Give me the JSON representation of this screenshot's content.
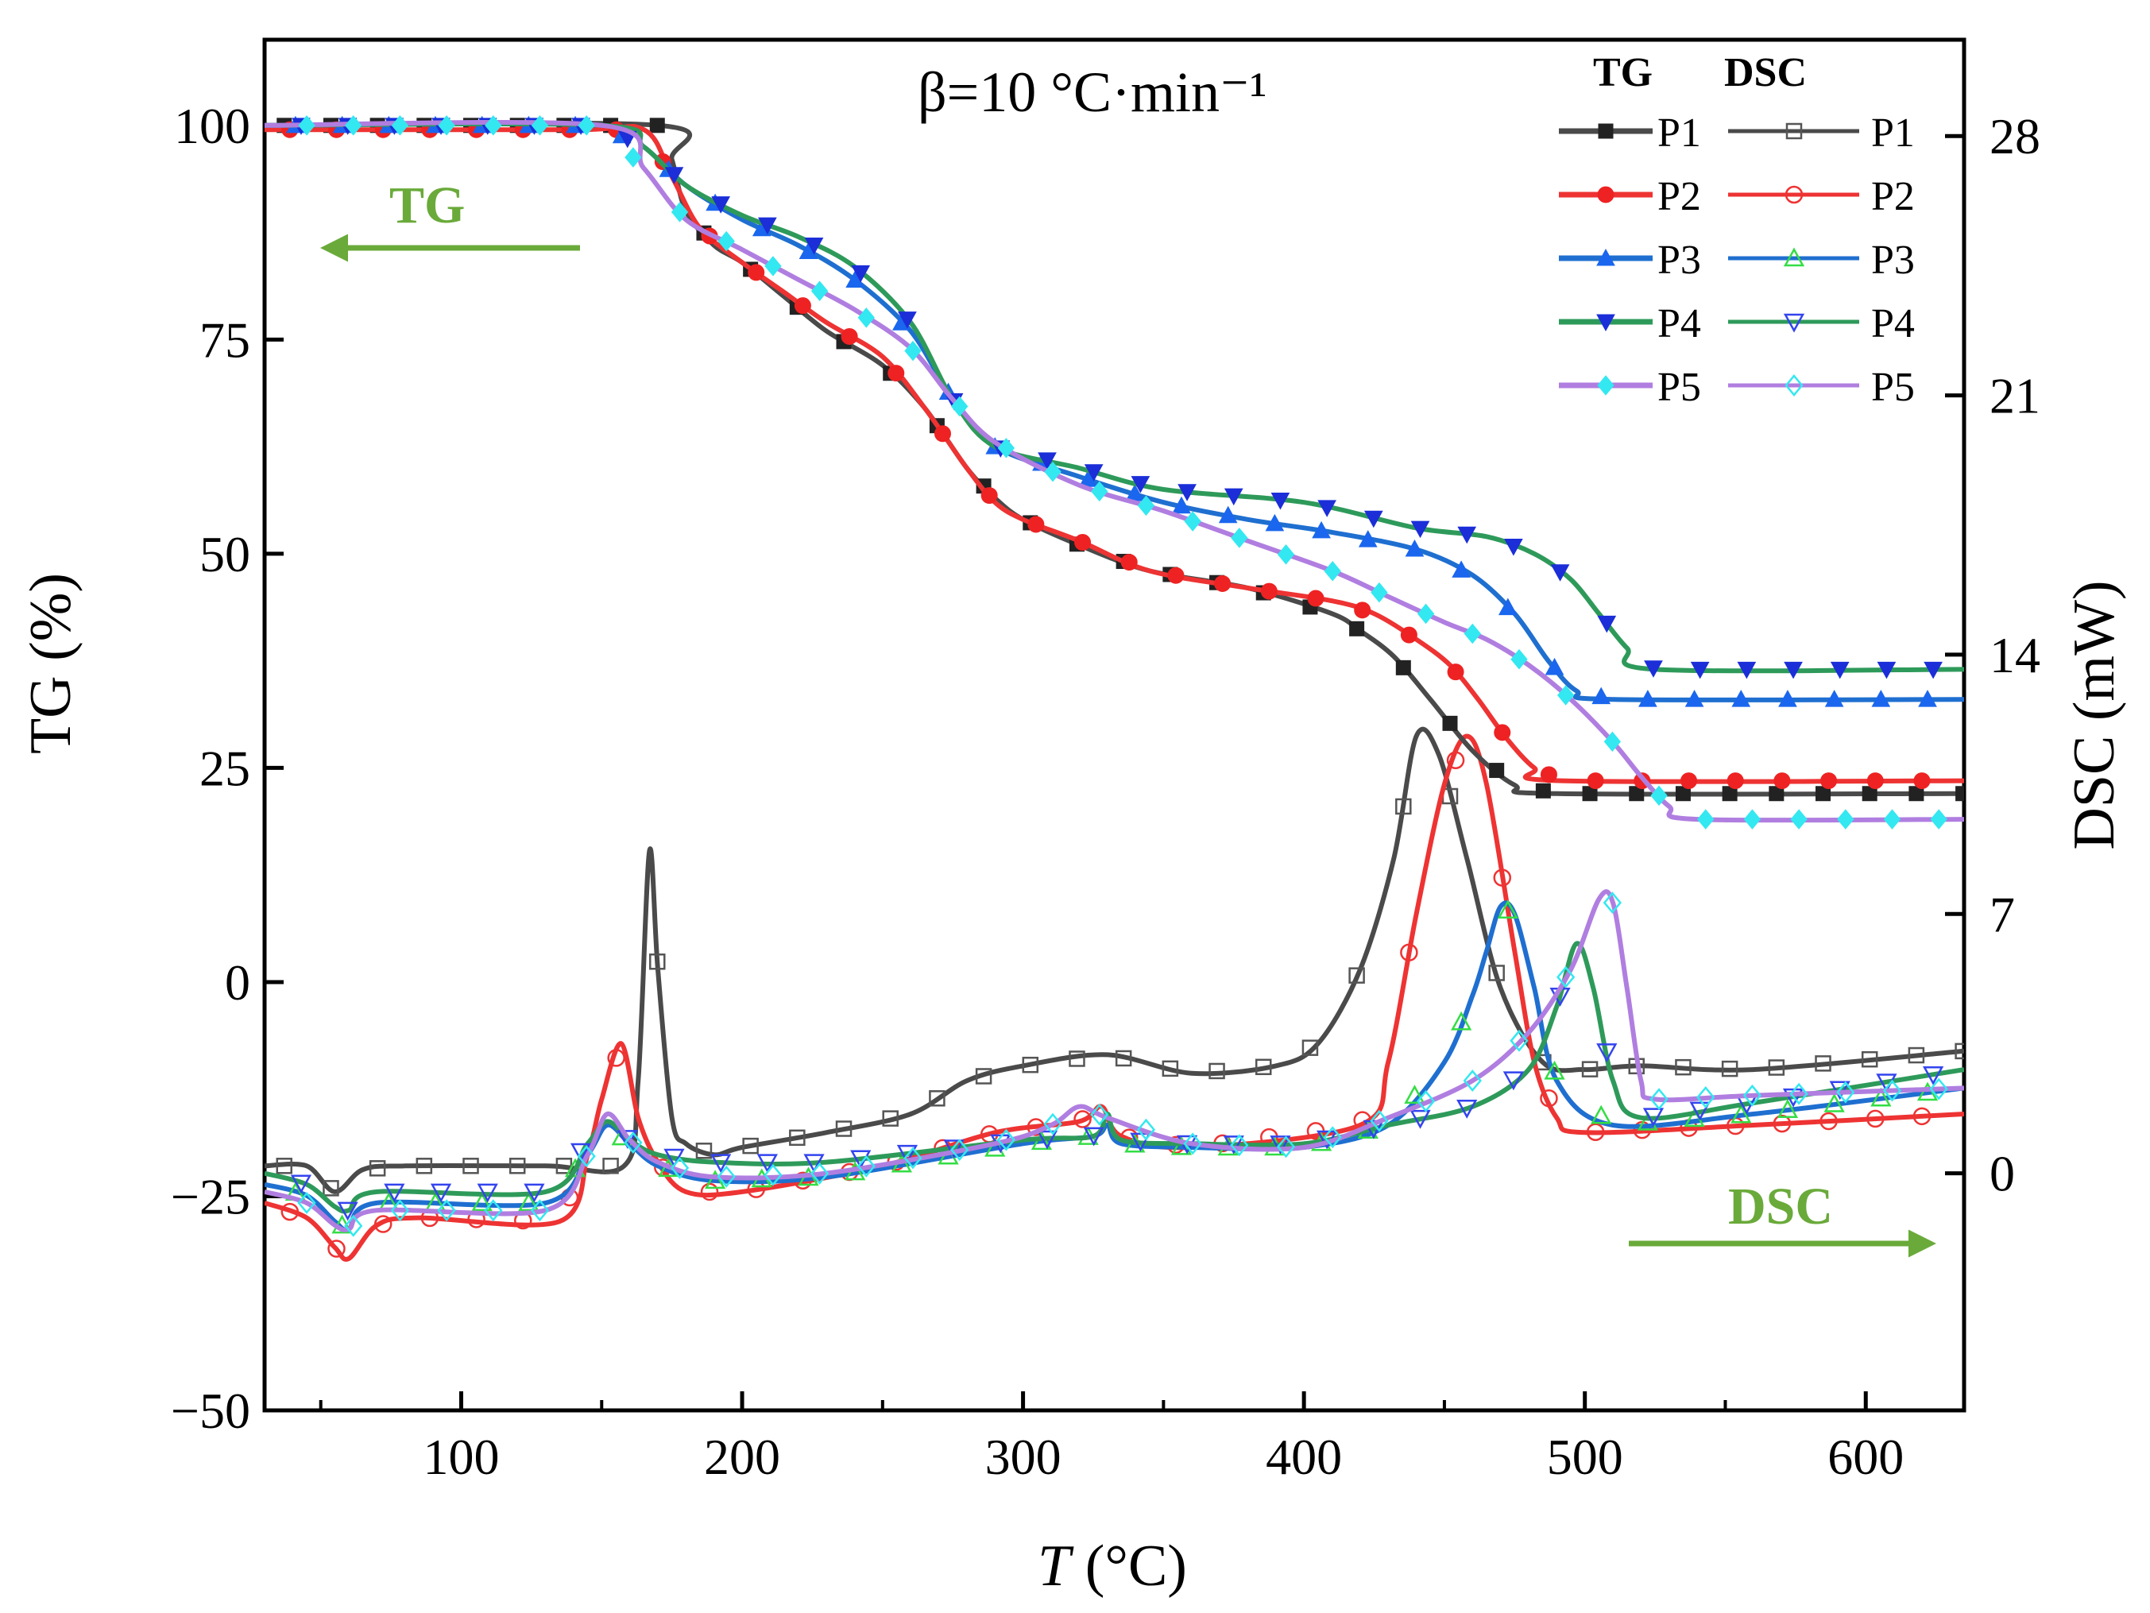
{
  "chart_data": {
    "type": "line",
    "title": "β=10 °C·min⁻¹",
    "xlabel": "T (°C)",
    "xlabel_italic": "T",
    "xlabel_unit": " (°C)",
    "ylabel_left": "TG (%)",
    "ylabel_right": "DSC (mW)",
    "xlim": [
      30,
      635
    ],
    "ylim_left": [
      -50,
      110
    ],
    "ylim_right": [
      -6.4,
      30.6
    ],
    "xticks": [
      100,
      200,
      300,
      400,
      500,
      600
    ],
    "yticks_left": [
      100,
      75,
      50,
      25,
      0,
      -25,
      -50
    ],
    "ytick_labels_left": [
      "100",
      "75",
      "50",
      "25",
      "0",
      "−25",
      "−50"
    ],
    "yticks_right": [
      28,
      21,
      14,
      7,
      0
    ],
    "grid": false,
    "legend_position": "top-right",
    "legend_headers": [
      "TG",
      "DSC"
    ],
    "annotations": {
      "tg_arrow_label": "TG",
      "dsc_arrow_label": "DSC",
      "arrow_color": "#6aaa3a"
    },
    "series_names": [
      "P1",
      "P2",
      "P3",
      "P4",
      "P5"
    ],
    "colors": {
      "P1": "#4a4a4a",
      "P2": "#ee3333",
      "P3": "#1f6fd0",
      "P4": "#2e9a5a",
      "P5": "#b07ee0"
    },
    "marker_colors_tg": {
      "P1": "#222222",
      "P2": "#ee2222",
      "P3": "#1a66ee",
      "P4": "#1b2ed8",
      "P5": "#33e8f0"
    },
    "marker_colors_dsc": {
      "P1": "#555555",
      "P2": "#ee3333",
      "P3": "#33dd44",
      "P4": "#3344ee",
      "P5": "#33e8f0"
    },
    "tg_series": [
      {
        "name": "P1",
        "x": [
          30,
          170,
          175,
          180,
          190,
          200,
          215,
          230,
          250,
          265,
          280,
          290,
          300,
          320,
          345,
          380,
          410,
          420,
          432,
          445,
          460,
          475,
          490,
          635
        ],
        "y": [
          100,
          100,
          96,
          90,
          86,
          84,
          80,
          76,
          72,
          67,
          60,
          56.5,
          54,
          51,
          48,
          46,
          43,
          41,
          38,
          33,
          27,
          23,
          22,
          22
        ]
      },
      {
        "name": "P2",
        "x": [
          30,
          140,
          165,
          175,
          185,
          200,
          215,
          230,
          250,
          265,
          280,
          290,
          300,
          320,
          345,
          380,
          410,
          425,
          440,
          452,
          462,
          472,
          482,
          492,
          635
        ],
        "y": [
          99.5,
          99.5,
          99.5,
          94,
          88,
          84,
          80.5,
          77,
          73,
          67,
          60,
          56,
          54,
          51.5,
          48,
          46,
          44.5,
          43,
          40,
          37,
          33,
          28.5,
          25,
          23.5,
          23.5
        ]
      },
      {
        "name": "P3",
        "x": [
          30,
          150,
          165,
          180,
          200,
          220,
          240,
          260,
          275,
          290,
          320,
          350,
          380,
          410,
          440,
          460,
          475,
          487,
          497,
          510,
          635
        ],
        "y": [
          100,
          100,
          97.5,
          93,
          89,
          86,
          82,
          76,
          68,
          62.5,
          59,
          56,
          54,
          52.5,
          50.5,
          47.5,
          43,
          37.5,
          34,
          33,
          33
        ]
      },
      {
        "name": "P4",
        "x": [
          30,
          150,
          165,
          180,
          200,
          220,
          240,
          260,
          275,
          290,
          320,
          350,
          400,
          440,
          465,
          482,
          495,
          505,
          515,
          525,
          635
        ],
        "y": [
          100,
          100,
          97.5,
          93,
          89.5,
          87,
          83.5,
          77,
          68,
          62.5,
          60,
          57.5,
          56,
          53,
          52,
          50,
          47,
          43,
          39,
          36.5,
          36.5
        ]
      },
      {
        "name": "P5",
        "x": [
          30,
          150,
          165,
          180,
          200,
          220,
          240,
          260,
          275,
          290,
          320,
          350,
          380,
          410,
          430,
          450,
          465,
          480,
          495,
          510,
          520,
          530,
          540,
          635
        ],
        "y": [
          100,
          100,
          95,
          89,
          85.5,
          82,
          78.5,
          74,
          68,
          63,
          58,
          55,
          51.5,
          48,
          45,
          42,
          40,
          37,
          33,
          28,
          24,
          20.5,
          19,
          19
        ]
      }
    ],
    "dsc_series": [
      {
        "name": "P1",
        "x": [
          30,
          45,
          55,
          65,
          80,
          130,
          158,
          163,
          167,
          170,
          175,
          180,
          190,
          200,
          230,
          260,
          280,
          300,
          330,
          360,
          390,
          405,
          420,
          432,
          440,
          448,
          458,
          470,
          485,
          500,
          520,
          560,
          635
        ],
        "y": [
          0.2,
          0.2,
          -0.5,
          0.1,
          0.2,
          0.2,
          0.2,
          2.5,
          8.7,
          5.5,
          1.5,
          0.8,
          0.5,
          0.7,
          1.1,
          1.6,
          2.5,
          2.9,
          3.2,
          2.7,
          2.9,
          3.5,
          5.5,
          8.5,
          11.8,
          11.3,
          8.5,
          5,
          3,
          2.8,
          2.9,
          2.8,
          3.3
        ]
      },
      {
        "name": "P2",
        "x": [
          30,
          45,
          55,
          60,
          70,
          85,
          135,
          145,
          150,
          157,
          163,
          170,
          180,
          200,
          250,
          290,
          320,
          328,
          335,
          360,
          420,
          430,
          440,
          450,
          458,
          465,
          475,
          482,
          490,
          500,
          560,
          635
        ],
        "y": [
          -0.8,
          -1.2,
          -2.0,
          -2.3,
          -1.4,
          -1.2,
          -1.3,
          0.5,
          2.0,
          3.5,
          1.5,
          0.3,
          -0.5,
          -0.5,
          0.2,
          1.1,
          1.4,
          1.8,
          1.0,
          0.7,
          1.3,
          3,
          7,
          10.5,
          11.8,
          10.5,
          6,
          3,
          1.5,
          1.1,
          1.3,
          1.6
        ]
      },
      {
        "name": "P3",
        "x": [
          30,
          45,
          55,
          60,
          70,
          130,
          145,
          152,
          160,
          170,
          190,
          230,
          300,
          325,
          330,
          335,
          360,
          400,
          430,
          450,
          460,
          465,
          470,
          475,
          482,
          490,
          510,
          560,
          635
        ],
        "y": [
          -0.3,
          -0.6,
          -1.3,
          -1.5,
          -0.8,
          -0.8,
          0.5,
          1.3,
          0.8,
          0.2,
          -0.2,
          -0.1,
          0.8,
          1.0,
          1.3,
          0.8,
          0.7,
          0.7,
          1.3,
          3.0,
          4.8,
          6.0,
          7.2,
          7.0,
          5.0,
          2.5,
          1.3,
          1.6,
          2.3
        ]
      },
      {
        "name": "P4",
        "x": [
          30,
          45,
          55,
          60,
          70,
          130,
          145,
          152,
          160,
          170,
          190,
          230,
          300,
          325,
          330,
          335,
          360,
          400,
          430,
          460,
          480,
          490,
          497,
          503,
          510,
          520,
          560,
          635
        ],
        "y": [
          0.0,
          -0.3,
          -0.9,
          -1.0,
          -0.5,
          -0.5,
          0.8,
          1.4,
          0.9,
          0.5,
          0.3,
          0.3,
          0.9,
          1.0,
          1.6,
          0.9,
          0.8,
          0.8,
          1.3,
          1.8,
          2.8,
          4.5,
          6.2,
          5.0,
          2.5,
          1.5,
          1.9,
          2.8
        ]
      },
      {
        "name": "P5",
        "x": [
          30,
          45,
          55,
          60,
          70,
          130,
          145,
          152,
          160,
          170,
          190,
          230,
          290,
          310,
          320,
          330,
          360,
          400,
          430,
          460,
          480,
          495,
          505,
          510,
          515,
          520,
          525,
          560,
          635
        ],
        "y": [
          -0.5,
          -0.8,
          -1.4,
          -1.5,
          -1.0,
          -1.0,
          0.5,
          1.6,
          0.9,
          0.3,
          -0.1,
          0.0,
          0.8,
          1.3,
          1.8,
          1.5,
          0.8,
          0.7,
          1.5,
          2.5,
          3.8,
          5.5,
          7.4,
          7.3,
          5,
          2.5,
          2.0,
          2.1,
          2.3
        ]
      }
    ]
  }
}
